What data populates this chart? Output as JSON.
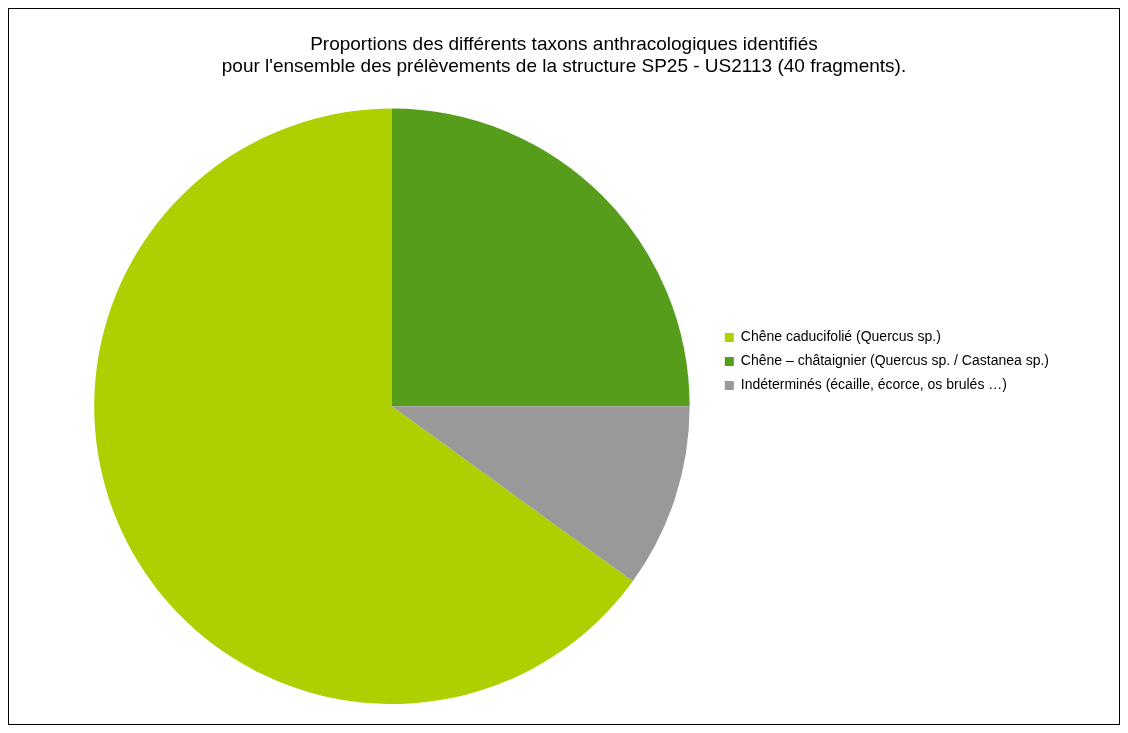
{
  "chart_data": {
    "type": "pie",
    "title": "Proportions des différents taxons anthracologiques identifiés\npour l'ensemble des prélèvements de la structure SP25 - US2113 (40 fragments).",
    "categories": [
      "Chêne caducifolié (Quercus sp.)",
      "Chêne – châtaignier (Quercus sp. / Castanea sp.)",
      "Indéterminés (écaille, écorce, os brulés …)"
    ],
    "values": [
      65,
      25,
      10
    ],
    "colors": [
      "#aecf00",
      "#579d1c",
      "#999999"
    ],
    "legend": "right"
  }
}
